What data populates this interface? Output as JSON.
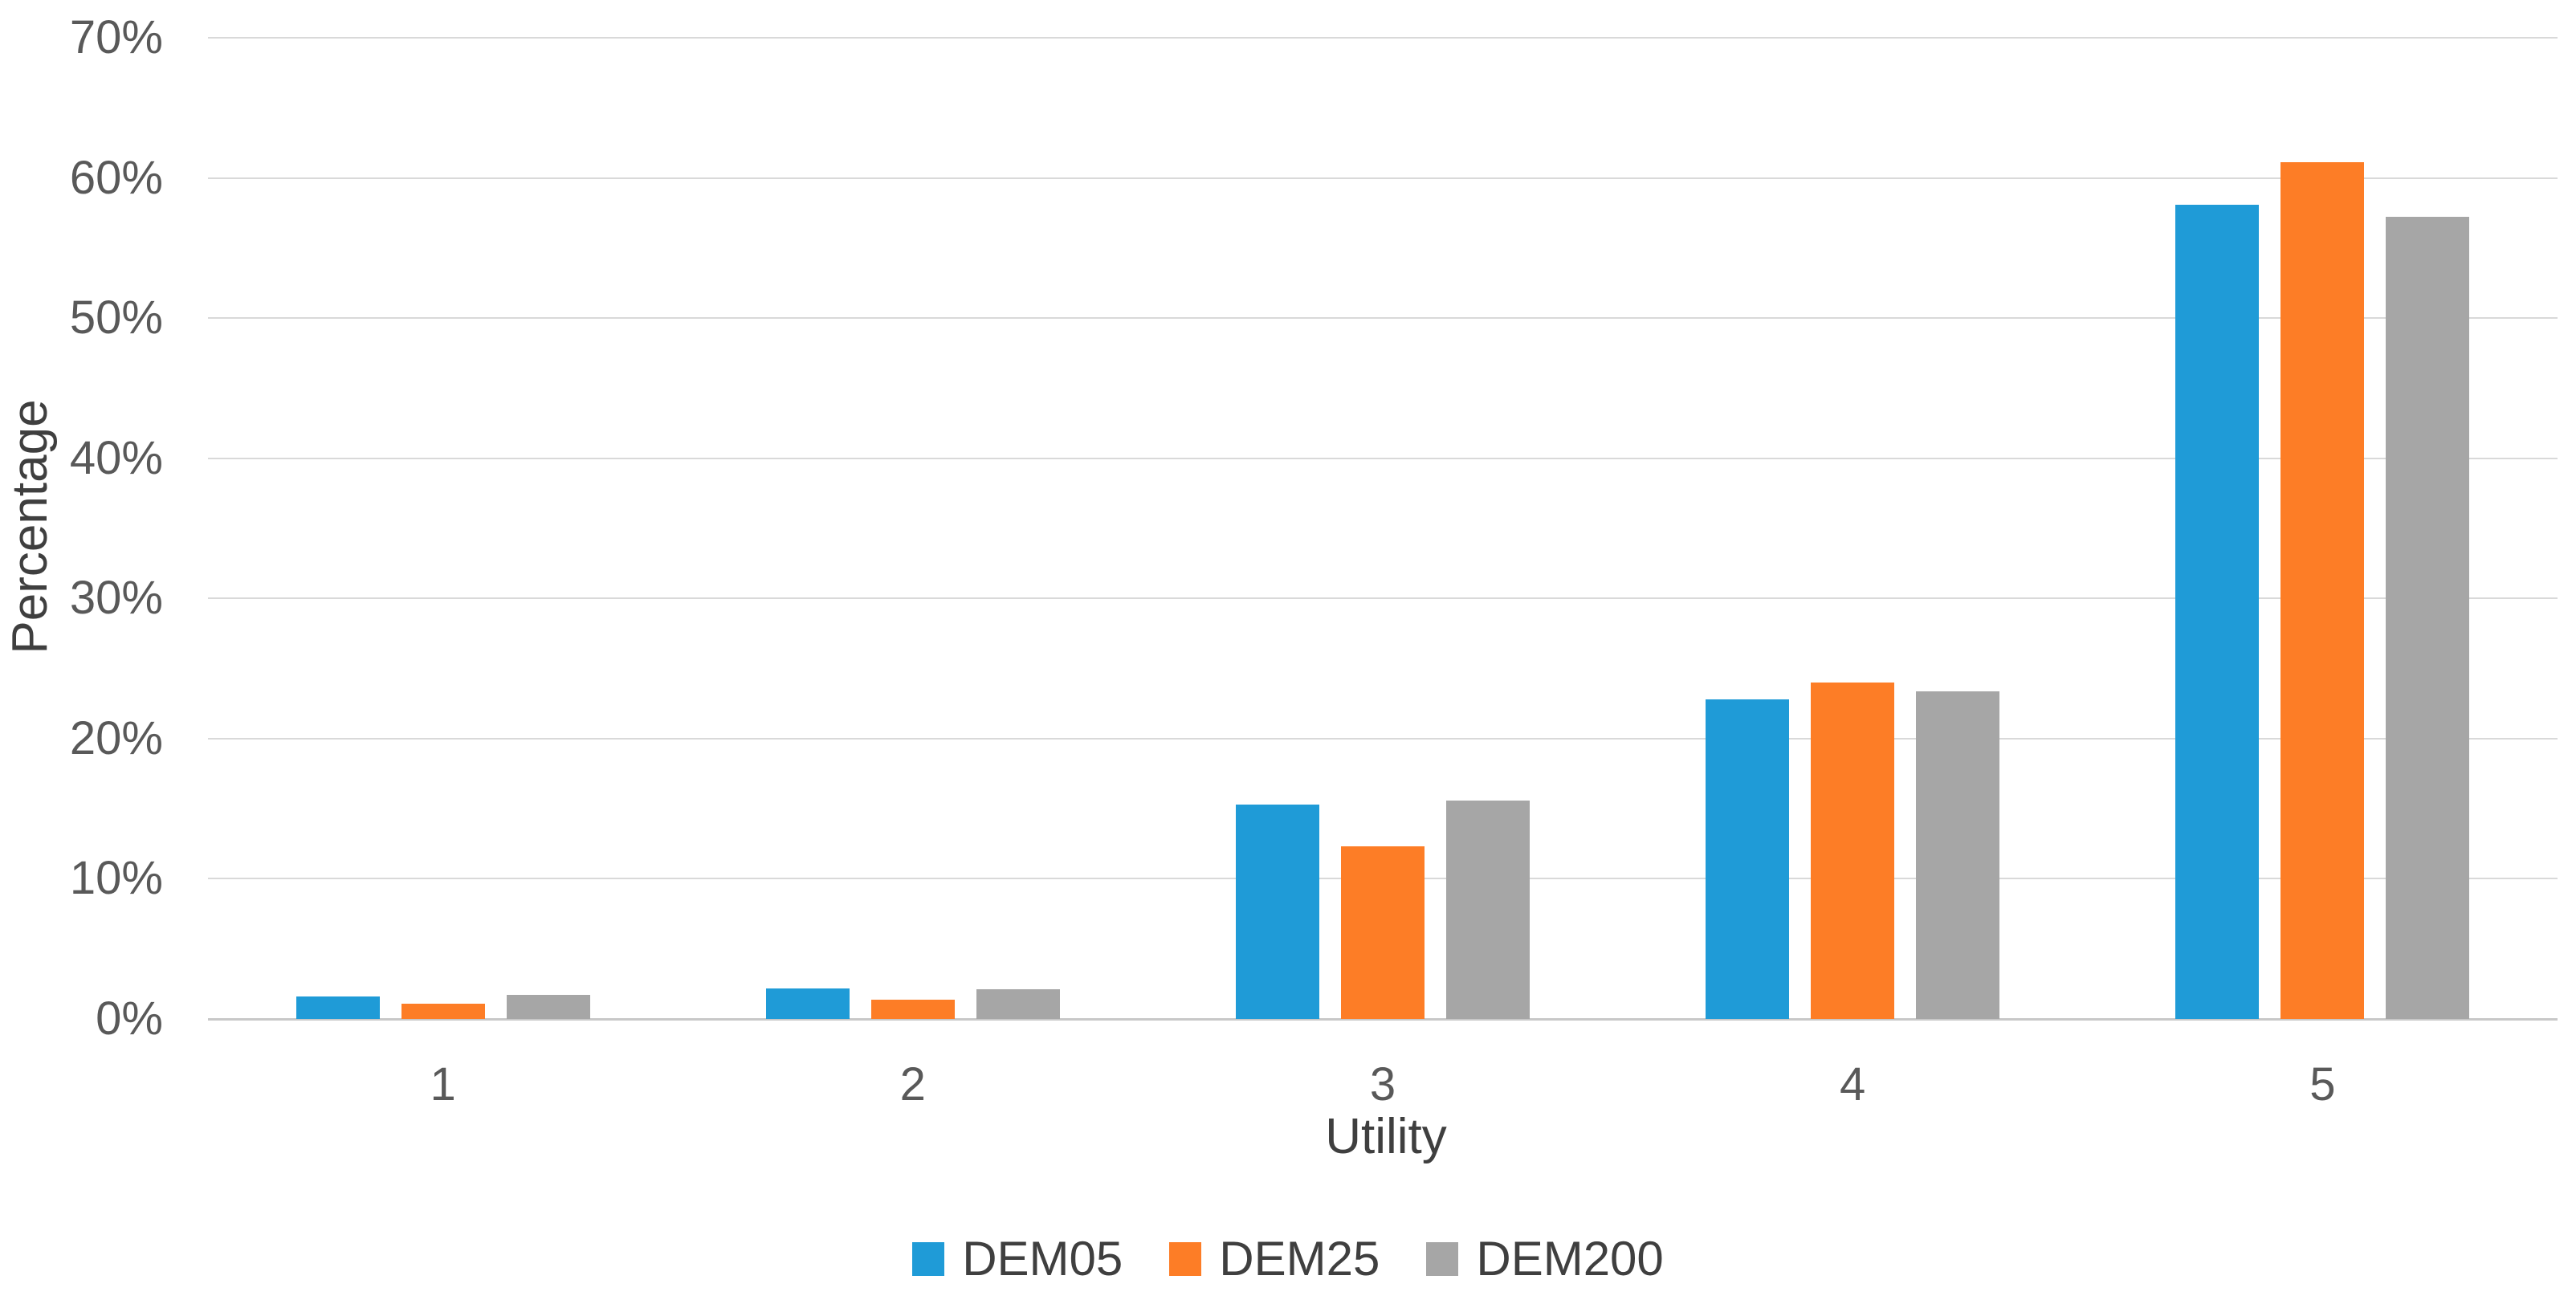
{
  "chart_data": {
    "type": "bar",
    "title": "",
    "xlabel": "Utility",
    "ylabel": "Percentage",
    "categories": [
      "1",
      "2",
      "3",
      "4",
      "5"
    ],
    "series": [
      {
        "name": "DEM05",
        "color": "#1f9bd7",
        "values": [
          1.6,
          2.2,
          15.3,
          22.8,
          58.1
        ]
      },
      {
        "name": "DEM25",
        "color": "#fd7d26",
        "values": [
          1.1,
          1.4,
          12.3,
          24.0,
          61.1
        ]
      },
      {
        "name": "DEM200",
        "color": "#a6a6a6",
        "values": [
          1.7,
          2.1,
          15.6,
          23.4,
          57.2
        ]
      }
    ],
    "y_ticks": [
      "0%",
      "10%",
      "20%",
      "30%",
      "40%",
      "50%",
      "60%",
      "70%"
    ],
    "ylim": [
      0,
      70
    ],
    "grid": "horizontal",
    "legend_position": "bottom",
    "colors": {
      "gridline": "#d9d9d9",
      "axis_line": "#c8c8c8",
      "tick_text": "#595959",
      "title_text": "#3f3f3f"
    }
  }
}
